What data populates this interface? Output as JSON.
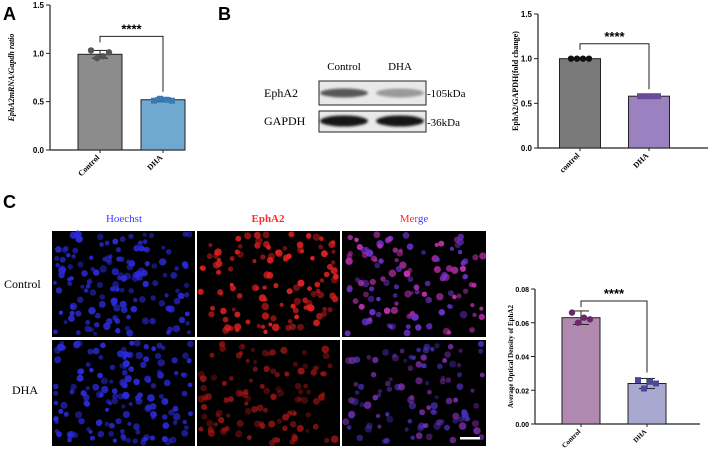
{
  "panels": {
    "A": {
      "letter": "A"
    },
    "B": {
      "letter": "B"
    },
    "C": {
      "letter": "C"
    }
  },
  "western_blot": {
    "lane_labels": [
      "Control",
      "DHA"
    ],
    "rows": [
      {
        "protein": "EphA2",
        "size": "105kDa",
        "bands": [
          0.65,
          0.35
        ]
      },
      {
        "protein": "GAPDH",
        "size": "36kDa",
        "bands": [
          0.95,
          0.95
        ]
      }
    ]
  },
  "microscopy": {
    "channel_labels": [
      "Hoechst",
      "EphA2",
      "Merge"
    ],
    "channel_colors": {
      "hoechst": "#3a3aff",
      "epha2": "#ff2a2a"
    },
    "merge_label_parts": [
      "Mer",
      "ge"
    ],
    "row_labels": [
      "Control",
      "DHA"
    ]
  },
  "chart_data": [
    {
      "type": "bar",
      "panel": "A",
      "categories": [
        "Control",
        "DHA"
      ],
      "values": [
        0.99,
        0.52
      ],
      "errors": [
        0.04,
        0.02
      ],
      "points": [
        [
          1.03,
          0.95,
          0.97,
          1.01
        ],
        [
          0.51,
          0.53,
          0.52,
          0.51
        ]
      ],
      "colors": [
        "#8c8c8c",
        "#6fa8d0"
      ],
      "ylabel": "EphA2mRNA/Gapdh ratio",
      "ylim": [
        0,
        1.5
      ],
      "yticks": [
        0.0,
        0.5,
        1.0,
        1.5
      ],
      "ytick_labels": [
        "0.0",
        "0.5",
        "1.0",
        "1.5"
      ],
      "significance": "****"
    },
    {
      "type": "bar",
      "panel": "B",
      "categories": [
        "control",
        "DHA"
      ],
      "values": [
        1.0,
        0.58
      ],
      "errors": [
        0.01,
        0.01
      ],
      "points": [
        [
          1.0,
          1.0,
          1.0,
          1.0
        ],
        [
          0.58,
          0.58,
          0.58,
          0.58
        ]
      ],
      "colors": [
        "#7a7a7a",
        "#9a82c0"
      ],
      "ylabel": "EphA2/GAPDH(fold change)",
      "ylim": [
        0,
        1.5
      ],
      "yticks": [
        0.0,
        0.5,
        1.0,
        1.5
      ],
      "ytick_labels": [
        "0.0",
        "0.5",
        "1.0",
        "1.5"
      ],
      "significance": "****"
    },
    {
      "type": "bar",
      "panel": "C",
      "categories": [
        "Control",
        "DHA"
      ],
      "values": [
        0.063,
        0.024
      ],
      "errors": [
        0.004,
        0.003
      ],
      "points": [
        [
          0.066,
          0.06,
          0.063,
          0.062
        ],
        [
          0.026,
          0.021,
          0.025,
          0.024
        ]
      ],
      "colors": [
        "#b088b0",
        "#a8a8d0"
      ],
      "ylabel": "Average Optical Density of EphA2",
      "ylim": [
        0,
        0.08
      ],
      "yticks": [
        0.0,
        0.02,
        0.04,
        0.06,
        0.08
      ],
      "ytick_labels": [
        "0.00",
        "0.02",
        "0.04",
        "0.06",
        "0.08"
      ],
      "significance": "****"
    }
  ]
}
